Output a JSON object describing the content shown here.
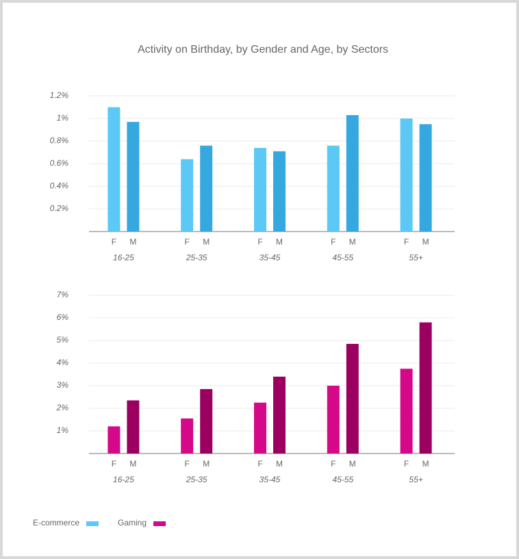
{
  "title": "Activity on Birthday, by Gender and Age, by Sectors",
  "chart_data": [
    {
      "type": "bar",
      "categories": [
        "16-25",
        "25-35",
        "35-45",
        "45-55",
        "55+"
      ],
      "series": [
        {
          "name": "F",
          "color": "#5bc8f5",
          "values": [
            1.1,
            0.64,
            0.74,
            0.76,
            1.0
          ]
        },
        {
          "name": "M",
          "color": "#35a8e0",
          "values": [
            0.97,
            0.76,
            0.71,
            1.03,
            0.95
          ]
        }
      ],
      "ylim": [
        0,
        1.2
      ],
      "yticks": [
        {
          "value": 0.2,
          "label": "0.2%"
        },
        {
          "value": 0.4,
          "label": "0.4%"
        },
        {
          "value": 0.6,
          "label": "0.6%"
        },
        {
          "value": 0.8,
          "label": "0.8%"
        },
        {
          "value": 1,
          "label": "1%"
        },
        {
          "value": 1.2,
          "label": "1.2%"
        }
      ],
      "grid": true
    },
    {
      "type": "bar",
      "categories": [
        "16-25",
        "25-35",
        "35-45",
        "45-55",
        "55+"
      ],
      "series": [
        {
          "name": "F",
          "color": "#d6088a",
          "values": [
            1.2,
            1.55,
            2.25,
            3.0,
            3.75
          ]
        },
        {
          "name": "M",
          "color": "#9b0060",
          "values": [
            2.35,
            2.85,
            3.4,
            4.85,
            5.8
          ]
        }
      ],
      "ylim": [
        0,
        7
      ],
      "yticks": [
        {
          "value": 1,
          "label": "1%"
        },
        {
          "value": 2,
          "label": "2%"
        },
        {
          "value": 3,
          "label": "3%"
        },
        {
          "value": 4,
          "label": "4%"
        },
        {
          "value": 5,
          "label": "5%"
        },
        {
          "value": 6,
          "label": "6%"
        },
        {
          "value": 7,
          "label": "7%"
        }
      ],
      "grid": true
    }
  ],
  "legend": [
    {
      "name": "E-commerce",
      "color": "#5bc8f5"
    },
    {
      "name": "Gaming",
      "color": "#d6088a"
    }
  ]
}
